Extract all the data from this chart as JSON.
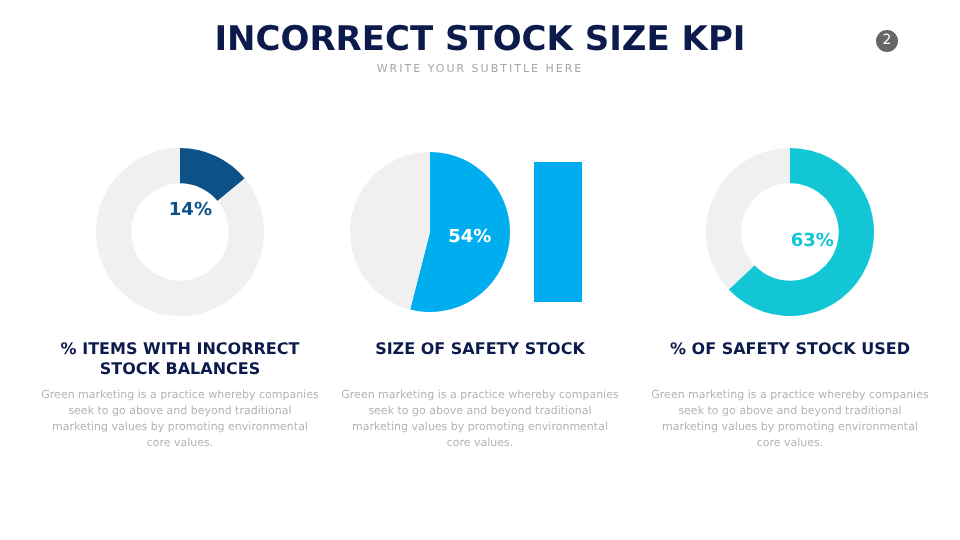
{
  "chart_data": [
    {
      "type": "other",
      "title": "INCORRECT STOCK SIZE KPI",
      "subtitle": "WRITE YOUR SUBTITLE HERE",
      "annotations": [
        "2"
      ]
    },
    {
      "type": "donut",
      "title": "% ITEMS WITH INCORRECT STOCK BALANCES",
      "categories": [
        null,
        null
      ],
      "values": [
        14,
        86
      ],
      "colors": [
        "#0d5189",
        "#f0f0f0"
      ],
      "value_labels": [
        "14%",
        null
      ],
      "annotations": [
        "Green marketing is a practice whereby companies seek to go above and beyond traditional marketing values by promoting environmental core values."
      ]
    },
    {
      "type": "pie",
      "title": "SIZE OF SAFETY STOCK",
      "categories": [
        null,
        null
      ],
      "values": [
        54,
        46
      ],
      "colors": [
        "#00aeef",
        "#f0f0f0"
      ],
      "value_labels": [
        "54%",
        null
      ],
      "annotations": [
        "Green marketing is a practice whereby companies seek to go above and beyond traditional marketing values by promoting environmental core values."
      ]
    },
    {
      "type": "donut",
      "title": "% OF SAFETY STOCK USED",
      "categories": [
        null,
        null
      ],
      "values": [
        63,
        37
      ],
      "colors": [
        "#12c6d6",
        "#f0f0f0"
      ],
      "value_labels": [
        "63%",
        null
      ],
      "annotations": [
        "Green marketing is a practice whereby companies seek to go above and beyond traditional marketing values by promoting environmental core values."
      ]
    }
  ]
}
